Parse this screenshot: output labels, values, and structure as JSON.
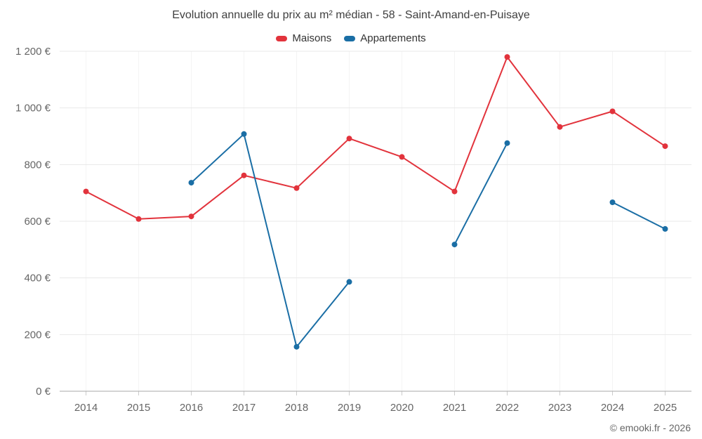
{
  "chart_data": {
    "type": "line",
    "title": "Evolution annuelle du prix au m² médian - 58 - Saint-Amand-en-Puisaye",
    "categories": [
      "2014",
      "2015",
      "2016",
      "2017",
      "2018",
      "2019",
      "2020",
      "2021",
      "2022",
      "2023",
      "2024",
      "2025"
    ],
    "series": [
      {
        "name": "Maisons",
        "key": "maisons",
        "color": "#e2333c",
        "values": [
          705,
          608,
          617,
          762,
          717,
          892,
          827,
          705,
          1180,
          933,
          988,
          865
        ]
      },
      {
        "name": "Appartements",
        "key": "appartements",
        "color": "#1a6ea5",
        "values": [
          null,
          null,
          736,
          908,
          157,
          386,
          null,
          518,
          876,
          null,
          667,
          573
        ]
      }
    ],
    "ylabel": "",
    "xlabel": "",
    "ylim": [
      0,
      1200
    ],
    "ytick_step": 200,
    "ytick_labels": [
      "0 €",
      "200 €",
      "400 €",
      "600 €",
      "800 €",
      "1 000 €",
      "1 200 €"
    ],
    "grid": true,
    "legend_position": "top"
  },
  "footer": {
    "copyright": "© emooki.fr - 2026"
  },
  "colors": {
    "grid_horizontal": "#e8e8e8",
    "grid_vertical": "#f4f4f4",
    "axis_line": "#aaaaaa",
    "tick": "#cccccc",
    "axis_text": "#666666",
    "title_text": "#3f3f3f"
  }
}
